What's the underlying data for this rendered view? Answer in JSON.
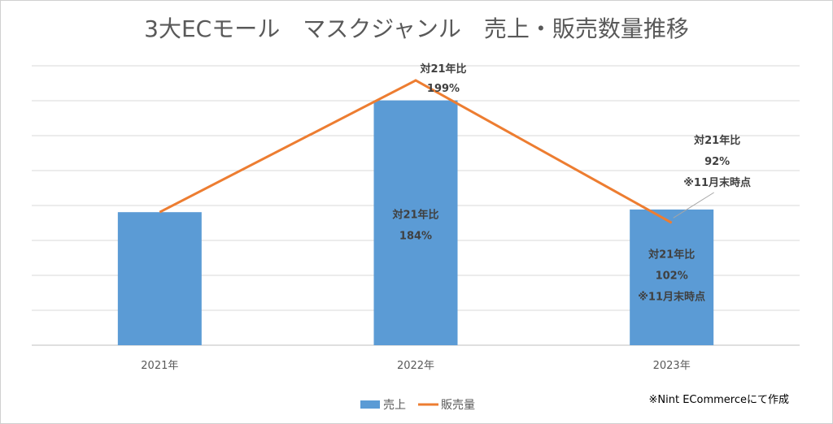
{
  "chart_data": {
    "type": "bar+line",
    "title": "3大ECモール　マスクジャンル　売上・販売数量推移",
    "categories": [
      "2021年",
      "2022年",
      "2023年"
    ],
    "series": [
      {
        "name": "売上",
        "type": "bar",
        "color": "#5B9BD5",
        "values": [
          100,
          184,
          102
        ]
      },
      {
        "name": "販売量",
        "type": "line",
        "color": "#ED7D31",
        "values": [
          100,
          199,
          92
        ]
      }
    ],
    "ylim": [
      0,
      210
    ],
    "grid": true,
    "legend_position": "bottom",
    "annotations": {
      "bars": [
        {
          "index": 1,
          "lines": [
            "対21年比",
            "184%"
          ]
        },
        {
          "index": 2,
          "lines": [
            "対21年比",
            "102%",
            "※11月末時点"
          ]
        }
      ],
      "line": [
        {
          "index": 1,
          "lines": [
            "対21年比",
            "199%"
          ]
        },
        {
          "index": 2,
          "lines": [
            "対21年比",
            "92%",
            "※11月末時点"
          ]
        }
      ]
    }
  },
  "source_note": "※Nint ECommerceにて作成"
}
